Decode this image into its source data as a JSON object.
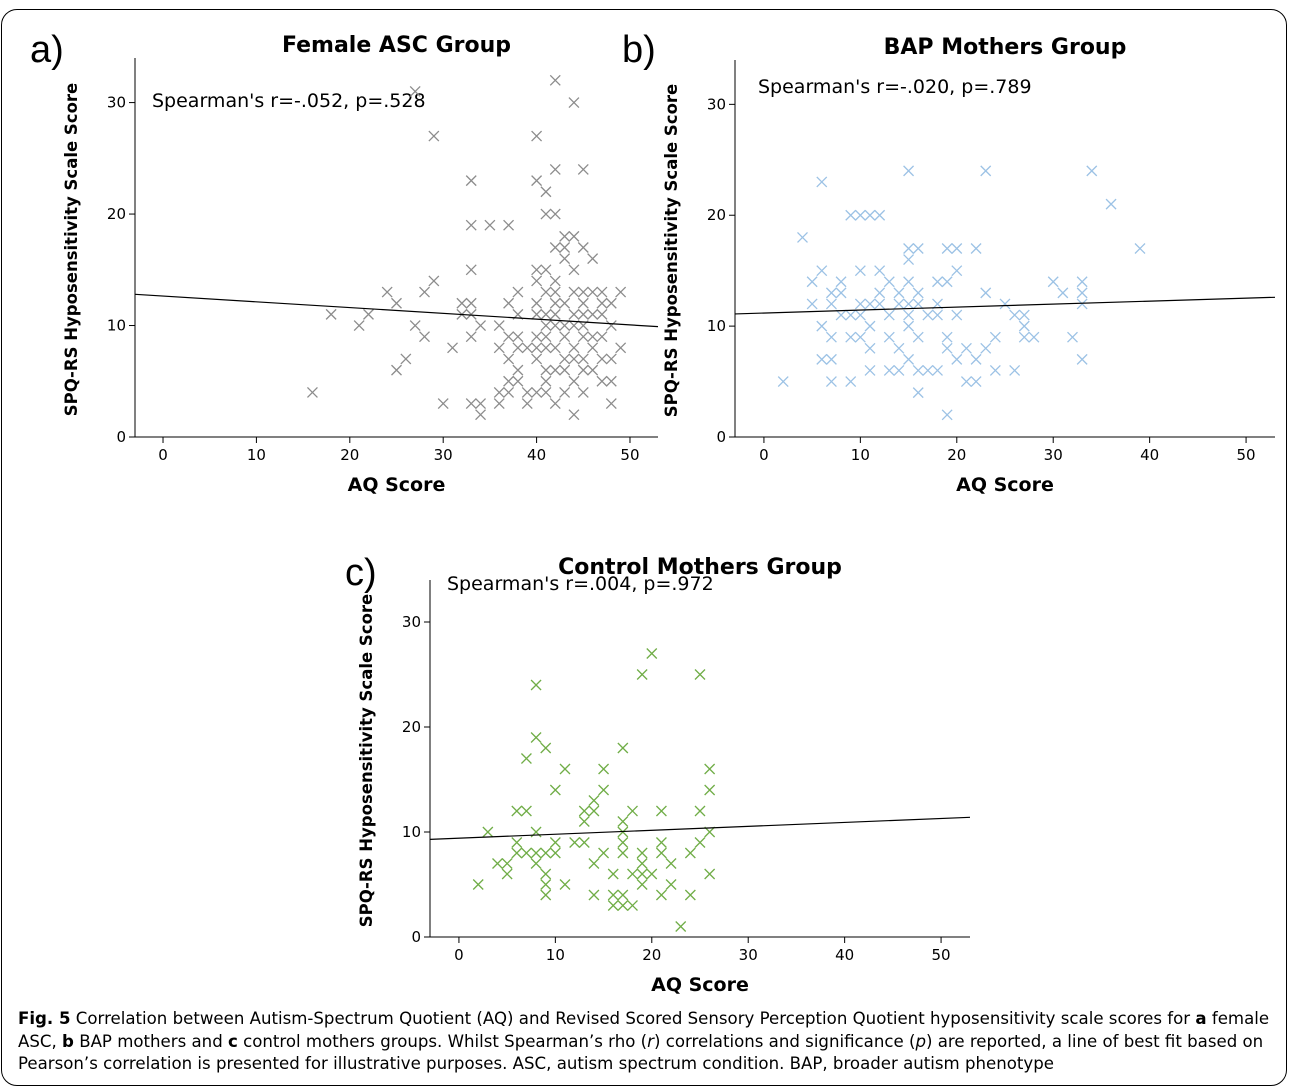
{
  "figure": {
    "panels": [
      {
        "letter": "a)",
        "title": "Female ASC Group",
        "annotation": "Spearman's r=-.052, p=.528",
        "xlabel": "AQ Score",
        "ylabel": "SPQ-RS Hyposensitivity Scale Score",
        "color": "#8c8c8c"
      },
      {
        "letter": "b)",
        "title": "BAP Mothers Group",
        "annotation": "Spearman's r=-.020, p=.789",
        "xlabel": "AQ Score",
        "ylabel": "SPQ-RS Hyposensitivity Scale Score",
        "color": "#9cc2e5"
      },
      {
        "letter": "c)",
        "title": "Control Mothers Group",
        "annotation": "Spearman's r=.004, p=.972",
        "xlabel": "AQ Score",
        "ylabel": "SPQ-RS Hyposensitivity Scale Score",
        "color": "#70ad47"
      }
    ]
  },
  "caption": {
    "label": "Fig. 5",
    "seg1": " Correlation between Autism-Spectrum Quotient (AQ) and Revised Scored Sensory Perception Quotient hyposensitivity scale scores for ",
    "a": "a",
    "seg2": " female ASC, ",
    "b": "b",
    "seg3": " BAP mothers and ",
    "c": "c",
    "seg4": " control mothers groups. Whilst Spearman’s rho (",
    "r": "r",
    "seg5": ") correlations and significance (",
    "p": "p",
    "seg6": ") are reported, a line of best fit based on Pearson’s correlation is presented for illustrative purposes. ASC, autism spectrum condition. BAP, broader autism phenotype"
  },
  "chart_data": [
    {
      "type": "scatter",
      "title": "Female ASC Group",
      "xlabel": "AQ Score",
      "ylabel": "SPQ-RS Hyposensitivity Scale Score",
      "xlim": [
        -3,
        53
      ],
      "ylim": [
        0,
        34
      ],
      "xticks": [
        0,
        10,
        20,
        30,
        40,
        50
      ],
      "yticks": [
        0,
        10,
        20,
        30
      ],
      "marker": "x",
      "color": "#8c8c8c",
      "fit_line": [
        [
          -3,
          12.8
        ],
        [
          53,
          9.9
        ]
      ],
      "annotation": "Spearman's r=-.052, p=.528",
      "points": [
        [
          16,
          4
        ],
        [
          18,
          11
        ],
        [
          21,
          10
        ],
        [
          22,
          11
        ],
        [
          24,
          13
        ],
        [
          25,
          12
        ],
        [
          25,
          6
        ],
        [
          26,
          7
        ],
        [
          27,
          31
        ],
        [
          27,
          10
        ],
        [
          28,
          9
        ],
        [
          28,
          13
        ],
        [
          29,
          27
        ],
        [
          29,
          14
        ],
        [
          30,
          3
        ],
        [
          31,
          8
        ],
        [
          32,
          12
        ],
        [
          32,
          11
        ],
        [
          33,
          23
        ],
        [
          33,
          19
        ],
        [
          33,
          15
        ],
        [
          33,
          12
        ],
        [
          33,
          11
        ],
        [
          33,
          9
        ],
        [
          33,
          3
        ],
        [
          34,
          10
        ],
        [
          34,
          3
        ],
        [
          34,
          2
        ],
        [
          35,
          19
        ],
        [
          36,
          10
        ],
        [
          36,
          8
        ],
        [
          36,
          4
        ],
        [
          36,
          3
        ],
        [
          37,
          19
        ],
        [
          37,
          12
        ],
        [
          37,
          9
        ],
        [
          37,
          7
        ],
        [
          37,
          5
        ],
        [
          37,
          4
        ],
        [
          38,
          13
        ],
        [
          38,
          11
        ],
        [
          38,
          9
        ],
        [
          38,
          8
        ],
        [
          38,
          6
        ],
        [
          38,
          5
        ],
        [
          39,
          8
        ],
        [
          39,
          4
        ],
        [
          39,
          3
        ],
        [
          40,
          27
        ],
        [
          40,
          23
        ],
        [
          40,
          15
        ],
        [
          40,
          14
        ],
        [
          40,
          12
        ],
        [
          40,
          11
        ],
        [
          40,
          9
        ],
        [
          40,
          8
        ],
        [
          40,
          7
        ],
        [
          40,
          4
        ],
        [
          41,
          22
        ],
        [
          41,
          20
        ],
        [
          41,
          15
        ],
        [
          41,
          13
        ],
        [
          41,
          11
        ],
        [
          41,
          10
        ],
        [
          41,
          9
        ],
        [
          41,
          8
        ],
        [
          41,
          6
        ],
        [
          41,
          5
        ],
        [
          41,
          4
        ],
        [
          42,
          32
        ],
        [
          42,
          24
        ],
        [
          42,
          20
        ],
        [
          42,
          17
        ],
        [
          42,
          14
        ],
        [
          42,
          13
        ],
        [
          42,
          12
        ],
        [
          42,
          11
        ],
        [
          42,
          10
        ],
        [
          42,
          8
        ],
        [
          42,
          6
        ],
        [
          42,
          3
        ],
        [
          43,
          18
        ],
        [
          43,
          17
        ],
        [
          43,
          16
        ],
        [
          43,
          12
        ],
        [
          43,
          10
        ],
        [
          43,
          9
        ],
        [
          43,
          7
        ],
        [
          43,
          6
        ],
        [
          43,
          4
        ],
        [
          44,
          30
        ],
        [
          44,
          18
        ],
        [
          44,
          15
        ],
        [
          44,
          13
        ],
        [
          44,
          11
        ],
        [
          44,
          10
        ],
        [
          44,
          8
        ],
        [
          44,
          7
        ],
        [
          44,
          5
        ],
        [
          44,
          2
        ],
        [
          45,
          24
        ],
        [
          45,
          17
        ],
        [
          45,
          13
        ],
        [
          45,
          12
        ],
        [
          45,
          11
        ],
        [
          45,
          10
        ],
        [
          45,
          9
        ],
        [
          45,
          7
        ],
        [
          45,
          6
        ],
        [
          45,
          4
        ],
        [
          46,
          16
        ],
        [
          46,
          13
        ],
        [
          46,
          11
        ],
        [
          46,
          9
        ],
        [
          46,
          8
        ],
        [
          46,
          6
        ],
        [
          47,
          13
        ],
        [
          47,
          12
        ],
        [
          47,
          11
        ],
        [
          47,
          9
        ],
        [
          47,
          7
        ],
        [
          47,
          5
        ],
        [
          48,
          12
        ],
        [
          48,
          10
        ],
        [
          48,
          7
        ],
        [
          48,
          5
        ],
        [
          48,
          3
        ],
        [
          49,
          13
        ],
        [
          49,
          8
        ]
      ]
    },
    {
      "type": "scatter",
      "title": "BAP Mothers Group",
      "xlabel": "AQ Score",
      "ylabel": "SPQ-RS Hyposensitivity Scale Score",
      "xlim": [
        -3,
        53
      ],
      "ylim": [
        0,
        34
      ],
      "xticks": [
        0,
        10,
        20,
        30,
        40,
        50
      ],
      "yticks": [
        0,
        10,
        20,
        30
      ],
      "marker": "x",
      "color": "#9cc2e5",
      "fit_line": [
        [
          -3,
          11.1
        ],
        [
          53,
          12.6
        ]
      ],
      "annotation": "Spearman's r=-.020, p=.789",
      "points": [
        [
          2,
          5
        ],
        [
          4,
          18
        ],
        [
          5,
          14
        ],
        [
          5,
          12
        ],
        [
          6,
          23
        ],
        [
          6,
          15
        ],
        [
          6,
          10
        ],
        [
          6,
          7
        ],
        [
          7,
          13
        ],
        [
          7,
          12
        ],
        [
          7,
          9
        ],
        [
          7,
          7
        ],
        [
          7,
          5
        ],
        [
          8,
          14
        ],
        [
          8,
          13
        ],
        [
          8,
          11
        ],
        [
          9,
          20
        ],
        [
          9,
          11
        ],
        [
          9,
          9
        ],
        [
          9,
          5
        ],
        [
          10,
          20
        ],
        [
          10,
          15
        ],
        [
          10,
          12
        ],
        [
          10,
          11
        ],
        [
          10,
          9
        ],
        [
          11,
          20
        ],
        [
          11,
          12
        ],
        [
          11,
          10
        ],
        [
          11,
          8
        ],
        [
          11,
          6
        ],
        [
          12,
          20
        ],
        [
          12,
          15
        ],
        [
          12,
          13
        ],
        [
          12,
          12
        ],
        [
          13,
          14
        ],
        [
          13,
          11
        ],
        [
          13,
          9
        ],
        [
          13,
          6
        ],
        [
          14,
          13
        ],
        [
          14,
          12
        ],
        [
          14,
          8
        ],
        [
          14,
          6
        ],
        [
          15,
          24
        ],
        [
          15,
          17
        ],
        [
          15,
          16
        ],
        [
          15,
          14
        ],
        [
          15,
          12
        ],
        [
          15,
          11
        ],
        [
          15,
          10
        ],
        [
          15,
          7
        ],
        [
          16,
          17
        ],
        [
          16,
          13
        ],
        [
          16,
          12
        ],
        [
          16,
          9
        ],
        [
          16,
          6
        ],
        [
          16,
          4
        ],
        [
          17,
          11
        ],
        [
          17,
          6
        ],
        [
          18,
          14
        ],
        [
          18,
          12
        ],
        [
          18,
          11
        ],
        [
          18,
          6
        ],
        [
          19,
          17
        ],
        [
          19,
          14
        ],
        [
          19,
          9
        ],
        [
          19,
          8
        ],
        [
          19,
          2
        ],
        [
          20,
          17
        ],
        [
          20,
          15
        ],
        [
          20,
          11
        ],
        [
          20,
          7
        ],
        [
          21,
          8
        ],
        [
          21,
          5
        ],
        [
          22,
          17
        ],
        [
          22,
          7
        ],
        [
          22,
          5
        ],
        [
          23,
          24
        ],
        [
          23,
          13
        ],
        [
          23,
          8
        ],
        [
          24,
          9
        ],
        [
          24,
          6
        ],
        [
          25,
          12
        ],
        [
          26,
          11
        ],
        [
          26,
          6
        ],
        [
          27,
          11
        ],
        [
          27,
          10
        ],
        [
          27,
          9
        ],
        [
          28,
          9
        ],
        [
          30,
          14
        ],
        [
          31,
          13
        ],
        [
          32,
          9
        ],
        [
          33,
          14
        ],
        [
          33,
          13
        ],
        [
          33,
          12
        ],
        [
          33,
          7
        ],
        [
          34,
          24
        ],
        [
          36,
          21
        ],
        [
          39,
          17
        ]
      ]
    },
    {
      "type": "scatter",
      "title": "Control Mothers Group",
      "xlabel": "AQ Score",
      "ylabel": "SPQ-RS Hyposensitivity Scale Score",
      "xlim": [
        -3,
        53
      ],
      "ylim": [
        0,
        34
      ],
      "xticks": [
        0,
        10,
        20,
        30,
        40,
        50
      ],
      "yticks": [
        0,
        10,
        20,
        30
      ],
      "marker": "x",
      "color": "#70ad47",
      "fit_line": [
        [
          -3,
          9.3
        ],
        [
          53,
          11.4
        ]
      ],
      "annotation": "Spearman's r=.004, p=.972",
      "points": [
        [
          2,
          5
        ],
        [
          3,
          10
        ],
        [
          4,
          7
        ],
        [
          5,
          7
        ],
        [
          5,
          6
        ],
        [
          6,
          12
        ],
        [
          6,
          9
        ],
        [
          6,
          8
        ],
        [
          7,
          17
        ],
        [
          7,
          12
        ],
        [
          7,
          8
        ],
        [
          8,
          24
        ],
        [
          8,
          19
        ],
        [
          8,
          10
        ],
        [
          8,
          8
        ],
        [
          8,
          7
        ],
        [
          9,
          18
        ],
        [
          9,
          8
        ],
        [
          9,
          6
        ],
        [
          9,
          5
        ],
        [
          9,
          4
        ],
        [
          10,
          14
        ],
        [
          10,
          9
        ],
        [
          10,
          8
        ],
        [
          11,
          16
        ],
        [
          11,
          5
        ],
        [
          12,
          9
        ],
        [
          13,
          12
        ],
        [
          13,
          11
        ],
        [
          13,
          9
        ],
        [
          14,
          13
        ],
        [
          14,
          12
        ],
        [
          14,
          7
        ],
        [
          14,
          4
        ],
        [
          15,
          16
        ],
        [
          15,
          14
        ],
        [
          15,
          8
        ],
        [
          16,
          6
        ],
        [
          16,
          4
        ],
        [
          16,
          3
        ],
        [
          17,
          18
        ],
        [
          17,
          11
        ],
        [
          17,
          10
        ],
        [
          17,
          9
        ],
        [
          17,
          8
        ],
        [
          17,
          4
        ],
        [
          17,
          3
        ],
        [
          18,
          12
        ],
        [
          18,
          6
        ],
        [
          18,
          3
        ],
        [
          19,
          25
        ],
        [
          19,
          8
        ],
        [
          19,
          7
        ],
        [
          19,
          6
        ],
        [
          19,
          5
        ],
        [
          20,
          27
        ],
        [
          20,
          6
        ],
        [
          21,
          12
        ],
        [
          21,
          9
        ],
        [
          21,
          8
        ],
        [
          21,
          4
        ],
        [
          22,
          7
        ],
        [
          22,
          5
        ],
        [
          23,
          1
        ],
        [
          24,
          8
        ],
        [
          24,
          4
        ],
        [
          25,
          25
        ],
        [
          25,
          12
        ],
        [
          25,
          9
        ],
        [
          26,
          16
        ],
        [
          26,
          14
        ],
        [
          26,
          10
        ],
        [
          26,
          6
        ]
      ]
    }
  ]
}
